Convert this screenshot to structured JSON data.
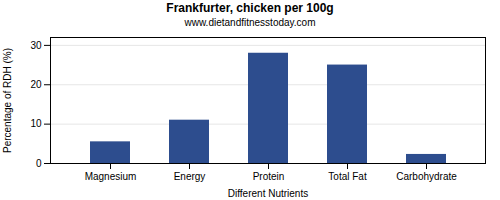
{
  "chart_data": {
    "type": "bar",
    "title": "Frankfurter, chicken per 100g",
    "subtitle": "www.dietandfitnesstoday.com",
    "xlabel": "Different Nutrients",
    "ylabel": "Percentage of RDH (%)",
    "categories": [
      "Magnesium",
      "Energy",
      "Protein",
      "Total Fat",
      "Carbohydrate"
    ],
    "values": [
      5.5,
      11.0,
      28.0,
      25.0,
      2.3
    ],
    "color": "#2d4d8e",
    "ylim": [
      0,
      32
    ],
    "yticks": [
      0,
      10,
      20,
      30
    ],
    "grid": true
  }
}
